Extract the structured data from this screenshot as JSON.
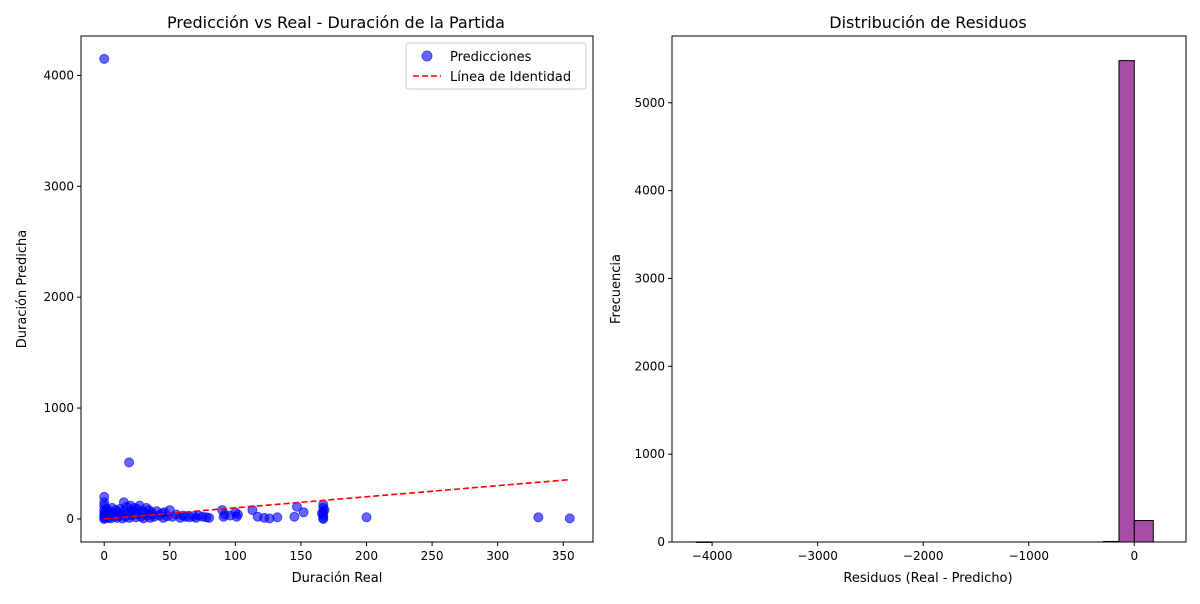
{
  "colors": {
    "points": "#0000ff",
    "identity": "#ff0000",
    "bars": "#800080",
    "bar_edge": "#000000"
  },
  "chart_data": [
    {
      "type": "scatter",
      "title": "Predicción vs Real - Duración de la Partida",
      "xlabel": "Duración Real",
      "ylabel": "Duración Predicha",
      "xlim": [
        -17.7,
        372.7
      ],
      "ylim": [
        -208,
        4356
      ],
      "xticks": [
        0,
        50,
        100,
        150,
        200,
        250,
        300,
        350
      ],
      "yticks": [
        0,
        1000,
        2000,
        3000,
        4000
      ],
      "legend_position": "top-right",
      "grid": false,
      "series": [
        {
          "name": "Predicciones",
          "kind": "points",
          "points": [
            [
              0,
              4150
            ],
            [
              19,
              510
            ],
            [
              0,
              200
            ],
            [
              0,
              150
            ],
            [
              0,
              120
            ],
            [
              0,
              80
            ],
            [
              0,
              50
            ],
            [
              0,
              30
            ],
            [
              0,
              10
            ],
            [
              0,
              0
            ],
            [
              1,
              60
            ],
            [
              1,
              20
            ],
            [
              2,
              90
            ],
            [
              2,
              40
            ],
            [
              3,
              10
            ],
            [
              4,
              70
            ],
            [
              5,
              30
            ],
            [
              5,
              5
            ],
            [
              6,
              100
            ],
            [
              7,
              50
            ],
            [
              8,
              20
            ],
            [
              9,
              80
            ],
            [
              10,
              10
            ],
            [
              10,
              60
            ],
            [
              11,
              30
            ],
            [
              12,
              90
            ],
            [
              13,
              40
            ],
            [
              14,
              5
            ],
            [
              15,
              150
            ],
            [
              15,
              70
            ],
            [
              16,
              20
            ],
            [
              17,
              110
            ],
            [
              18,
              50
            ],
            [
              19,
              10
            ],
            [
              20,
              120
            ],
            [
              20,
              80
            ],
            [
              21,
              30
            ],
            [
              22,
              60
            ],
            [
              23,
              100
            ],
            [
              24,
              15
            ],
            [
              25,
              90
            ],
            [
              26,
              40
            ],
            [
              27,
              120
            ],
            [
              28,
              20
            ],
            [
              29,
              70
            ],
            [
              30,
              5
            ],
            [
              31,
              50
            ],
            [
              32,
              100
            ],
            [
              33,
              30
            ],
            [
              34,
              80
            ],
            [
              35,
              10
            ],
            [
              36,
              60
            ],
            [
              37,
              40
            ],
            [
              38,
              20
            ],
            [
              40,
              70
            ],
            [
              42,
              30
            ],
            [
              44,
              50
            ],
            [
              45,
              10
            ],
            [
              46,
              60
            ],
            [
              48,
              25
            ],
            [
              50,
              80
            ],
            [
              52,
              20
            ],
            [
              55,
              40
            ],
            [
              58,
              10
            ],
            [
              60,
              30
            ],
            [
              62,
              20
            ],
            [
              65,
              15
            ],
            [
              68,
              25
            ],
            [
              70,
              10
            ],
            [
              72,
              30
            ],
            [
              75,
              20
            ],
            [
              78,
              15
            ],
            [
              80,
              10
            ],
            [
              90,
              80
            ],
            [
              91,
              20
            ],
            [
              92,
              40
            ],
            [
              96,
              30
            ],
            [
              100,
              60
            ],
            [
              101,
              20
            ],
            [
              102,
              40
            ],
            [
              113,
              80
            ],
            [
              117,
              20
            ],
            [
              122,
              10
            ],
            [
              126,
              5
            ],
            [
              132,
              15
            ],
            [
              145,
              20
            ],
            [
              147,
              110
            ],
            [
              152,
              60
            ],
            [
              166,
              50
            ],
            [
              167,
              130
            ],
            [
              167,
              100
            ],
            [
              167,
              60
            ],
            [
              167,
              30
            ],
            [
              167,
              10
            ],
            [
              167,
              0
            ],
            [
              168,
              80
            ],
            [
              200,
              15
            ],
            [
              331,
              15
            ],
            [
              355,
              5
            ]
          ]
        },
        {
          "name": "Línea de Identidad",
          "kind": "line",
          "points": [
            [
              0,
              0
            ],
            [
              355,
              355
            ]
          ]
        }
      ]
    },
    {
      "type": "bar",
      "title": "Distribución de Residuos",
      "xlabel": "Residuos (Real - Predicho)",
      "ylabel": "Frecuencia",
      "xlim": [
        -4380,
        490
      ],
      "ylim": [
        0,
        5760
      ],
      "xticks": [
        -4000,
        -3000,
        -2000,
        -1000,
        0
      ],
      "yticks": [
        0,
        1000,
        2000,
        3000,
        4000,
        5000
      ],
      "grid": false,
      "bins": [
        {
          "x0": -4150,
          "x1": -4005,
          "count": 1
        },
        {
          "x0": -290,
          "x1": -145,
          "count": 6
        },
        {
          "x0": -145,
          "x1": 0,
          "count": 5480
        },
        {
          "x0": 0,
          "x1": 180,
          "count": 245
        }
      ]
    }
  ]
}
